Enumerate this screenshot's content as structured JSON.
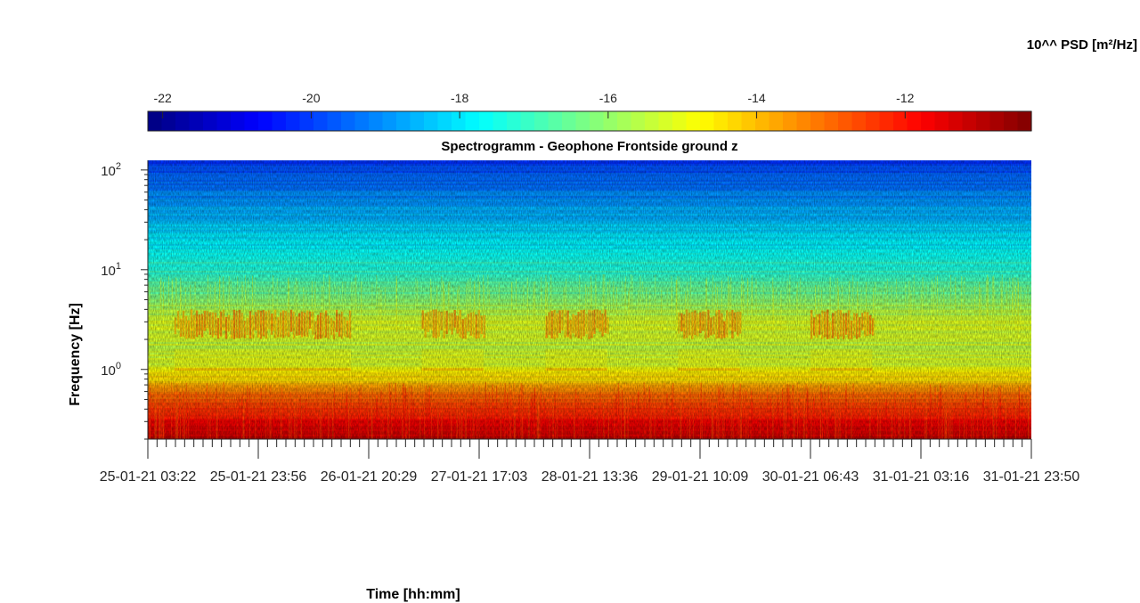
{
  "chart_data": {
    "type": "heatmap",
    "title": "Spectrogramm - Geophone Frontside ground z",
    "xlabel": "Time [hh:mm]",
    "ylabel": "Frequency [Hz]",
    "y_scale": "log",
    "y_range_hz": [
      0.2,
      125
    ],
    "y_tick_labels": [
      {
        "value": 100,
        "base": "10",
        "exp": "2"
      },
      {
        "value": 10,
        "base": "10",
        "exp": "1"
      },
      {
        "value": 1,
        "base": "10",
        "exp": "0"
      }
    ],
    "x_tick_labels": [
      "25-01-21 03:22",
      "25-01-21 23:56",
      "26-01-21 20:29",
      "27-01-21 17:03",
      "28-01-21 13:36",
      "29-01-21 10:09",
      "30-01-21 06:43",
      "31-01-21 03:16",
      "31-01-21 23:50"
    ],
    "colorbar": {
      "label": "10^^ PSD [m²/Hz]",
      "colormap": "jet",
      "range": [
        -22.2,
        -10.3
      ],
      "tick_labels": [
        "-22",
        "-20",
        "-18",
        "-16",
        "-14",
        "-12"
      ],
      "tick_values": [
        -22,
        -20,
        -18,
        -16,
        -14,
        -12
      ],
      "placement": "top"
    },
    "psd_profile_log10": [
      {
        "freq_hz": 0.2,
        "psd": -11.0
      },
      {
        "freq_hz": 0.3,
        "psd": -11.8
      },
      {
        "freq_hz": 0.5,
        "psd": -12.8
      },
      {
        "freq_hz": 0.8,
        "psd": -14.3
      },
      {
        "freq_hz": 1.0,
        "psd": -15.0
      },
      {
        "freq_hz": 1.5,
        "psd": -15.4
      },
      {
        "freq_hz": 3.0,
        "psd": -15.2
      },
      {
        "freq_hz": 6.0,
        "psd": -16.5
      },
      {
        "freq_hz": 10,
        "psd": -17.2
      },
      {
        "freq_hz": 20,
        "psd": -18.0
      },
      {
        "freq_hz": 50,
        "psd": -19.0
      },
      {
        "freq_hz": 100,
        "psd": -19.8
      },
      {
        "freq_hz": 125,
        "psd": -20.2
      }
    ],
    "daytime_band_hz": [
      2,
      4
    ],
    "daytime_band_psd": -13.5,
    "daytime_spans_fraction": [
      [
        0.03,
        0.14
      ],
      [
        0.14,
        0.23
      ],
      [
        0.31,
        0.38
      ],
      [
        0.45,
        0.52
      ],
      [
        0.6,
        0.67
      ],
      [
        0.75,
        0.82
      ]
    ],
    "grid": false
  }
}
